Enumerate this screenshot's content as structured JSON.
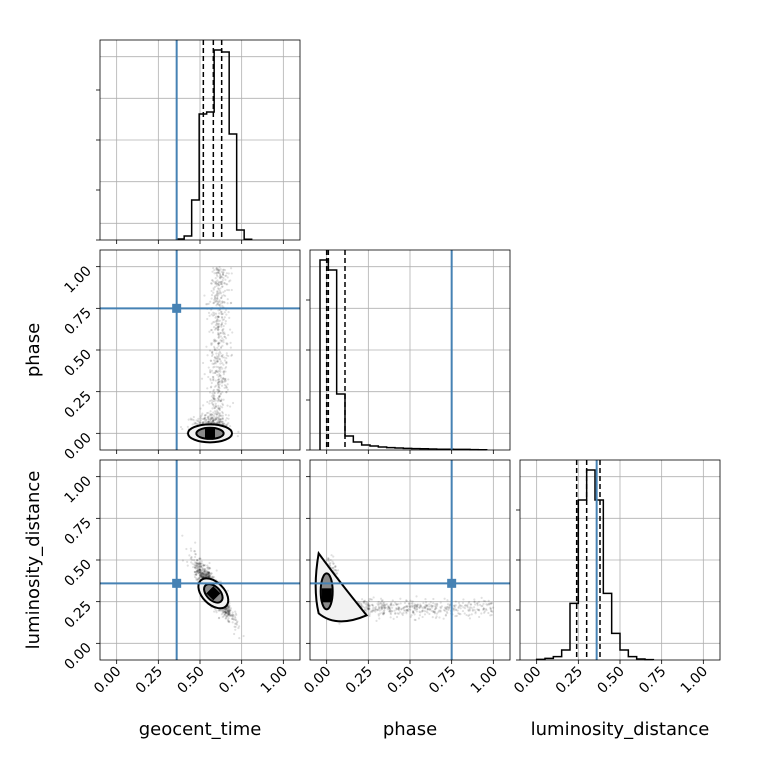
{
  "chart_data": {
    "type": "corner",
    "title": "",
    "parameters": [
      "geocent_time",
      "phase",
      "luminosity_distance"
    ],
    "axis_range": [
      -0.1,
      1.1
    ],
    "tick_values": [
      0.0,
      0.25,
      0.5,
      0.75,
      1.0
    ],
    "tick_labels": [
      "0.00",
      "0.25",
      "0.50",
      "0.75",
      "1.00"
    ],
    "grid": true,
    "truths": {
      "geocent_time": 0.36,
      "phase": 0.75,
      "luminosity_distance": 0.36
    },
    "truth_color": "#4682b4",
    "hist_color": "#000000",
    "histograms": {
      "geocent_time": {
        "bin_edges": [
          0.36,
          0.405,
          0.45,
          0.495,
          0.54,
          0.585,
          0.63,
          0.675,
          0.72,
          0.765,
          0.81
        ],
        "counts": [
          0.5,
          2,
          20,
          63,
          64,
          95,
          94,
          53,
          5,
          0.4
        ],
        "quantiles": [
          0.52,
          0.58,
          0.63
        ],
        "ylim_max": 100
      },
      "phase": {
        "bin_edges": [
          -0.04,
          0.01,
          0.06,
          0.11,
          0.16,
          0.21,
          0.26,
          0.31,
          0.36,
          0.41,
          0.46,
          0.51,
          0.56,
          0.61,
          0.66,
          0.71,
          0.76,
          0.81,
          0.86,
          0.91,
          0.96
        ],
        "counts": [
          95,
          90,
          28,
          7,
          4,
          2.5,
          2,
          1.5,
          1.2,
          1,
          0.8,
          0.7,
          0.6,
          0.5,
          0.4,
          0.4,
          0.3,
          0.3,
          0.2,
          0.1
        ],
        "quantiles": [
          0.0,
          0.01,
          0.11
        ],
        "ylim_max": 100
      },
      "luminosity_distance": {
        "bin_edges": [
          0.0,
          0.05,
          0.1,
          0.15,
          0.2,
          0.25,
          0.3,
          0.35,
          0.4,
          0.45,
          0.5,
          0.55,
          0.6,
          0.65,
          0.7
        ],
        "counts": [
          0.2,
          0.5,
          1,
          3,
          17,
          48,
          57,
          48,
          20,
          8,
          3,
          1,
          0.3,
          0.1
        ],
        "quantiles": [
          0.24,
          0.3,
          0.38
        ],
        "ylim_max": 60
      }
    },
    "scatter_2d": {
      "phase_vs_geocent_time": {
        "center": [
          0.56,
          0.0
        ],
        "scatter_core": [
          0.45,
          0.68,
          -0.05,
          0.3
        ],
        "tail_to": [
          0.6,
          1.0
        ]
      },
      "luminosity_distance_vs_geocent_time": {
        "center": [
          0.58,
          0.3
        ],
        "correlation": "negative",
        "x_range": [
          0.45,
          0.75
        ],
        "y_range": [
          0.12,
          0.6
        ]
      },
      "luminosity_distance_vs_phase": {
        "center": [
          0.0,
          0.3
        ],
        "trend": "flat tail to 1.0",
        "tail_level": 0.2
      }
    }
  }
}
